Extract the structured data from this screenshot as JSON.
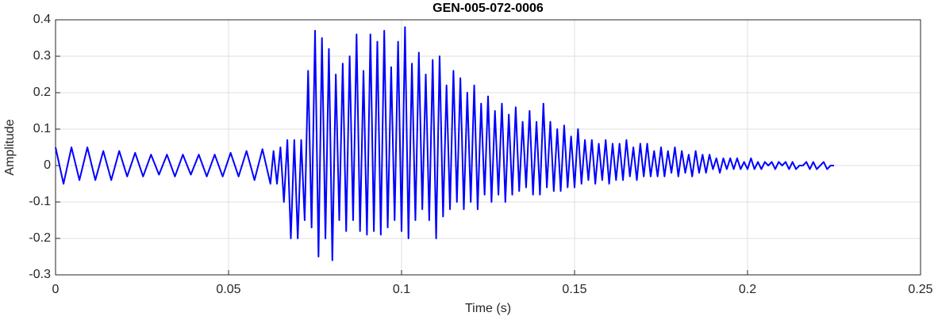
{
  "chart_data": {
    "type": "line",
    "title": "GEN-005-072-0006",
    "xlabel": "Time (s)",
    "ylabel": "Amplitude",
    "color": "#0000ff",
    "grid": true,
    "xlim": [
      0,
      0.25
    ],
    "xticks": [
      0,
      0.05,
      0.1,
      0.15,
      0.2,
      0.25
    ],
    "ylim": [
      -0.3,
      0.4
    ],
    "yticks": [
      -0.3,
      -0.2,
      -0.1,
      0,
      0.1,
      0.2,
      0.3,
      0.4
    ],
    "x": [
      0,
      0.0023,
      0.0046,
      0.0069,
      0.0092,
      0.0115,
      0.0138,
      0.0161,
      0.0184,
      0.0207,
      0.023,
      0.0253,
      0.0276,
      0.0299,
      0.0322,
      0.0345,
      0.0368,
      0.0391,
      0.0414,
      0.0437,
      0.046,
      0.0483,
      0.0506,
      0.0529,
      0.0552,
      0.0575,
      0.0598,
      0.0621,
      0.063,
      0.064,
      0.065,
      0.066,
      0.067,
      0.068,
      0.069,
      0.07,
      0.071,
      0.072,
      0.073,
      0.074,
      0.075,
      0.076,
      0.077,
      0.078,
      0.079,
      0.08,
      0.081,
      0.082,
      0.083,
      0.084,
      0.085,
      0.086,
      0.087,
      0.088,
      0.089,
      0.09,
      0.091,
      0.092,
      0.093,
      0.094,
      0.095,
      0.096,
      0.097,
      0.098,
      0.099,
      0.1,
      0.101,
      0.102,
      0.103,
      0.104,
      0.105,
      0.106,
      0.107,
      0.108,
      0.109,
      0.11,
      0.111,
      0.112,
      0.113,
      0.114,
      0.115,
      0.116,
      0.117,
      0.118,
      0.119,
      0.12,
      0.121,
      0.122,
      0.123,
      0.124,
      0.125,
      0.126,
      0.127,
      0.128,
      0.129,
      0.13,
      0.131,
      0.132,
      0.133,
      0.134,
      0.135,
      0.136,
      0.137,
      0.138,
      0.139,
      0.14,
      0.141,
      0.142,
      0.143,
      0.144,
      0.145,
      0.146,
      0.147,
      0.148,
      0.149,
      0.15,
      0.151,
      0.152,
      0.153,
      0.154,
      0.155,
      0.156,
      0.157,
      0.158,
      0.159,
      0.16,
      0.161,
      0.162,
      0.163,
      0.164,
      0.165,
      0.166,
      0.167,
      0.168,
      0.169,
      0.17,
      0.171,
      0.172,
      0.173,
      0.174,
      0.175,
      0.176,
      0.177,
      0.178,
      0.179,
      0.18,
      0.181,
      0.182,
      0.183,
      0.184,
      0.185,
      0.186,
      0.187,
      0.188,
      0.189,
      0.19,
      0.191,
      0.192,
      0.193,
      0.194,
      0.195,
      0.196,
      0.197,
      0.198,
      0.199,
      0.2,
      0.201,
      0.202,
      0.203,
      0.204,
      0.205,
      0.206,
      0.207,
      0.208,
      0.209,
      0.21,
      0.211,
      0.212,
      0.213,
      0.214,
      0.215,
      0.216,
      0.217,
      0.218,
      0.219,
      0.22,
      0.221,
      0.222,
      0.223,
      0.224,
      0.225
    ],
    "values": [
      0.05,
      -0.05,
      0.05,
      -0.04,
      0.05,
      -0.04,
      0.04,
      -0.04,
      0.04,
      -0.03,
      0.035,
      -0.03,
      0.03,
      -0.025,
      0.03,
      -0.03,
      0.03,
      -0.025,
      0.03,
      -0.03,
      0.03,
      -0.03,
      0.035,
      -0.03,
      0.04,
      -0.04,
      0.045,
      -0.05,
      0.04,
      -0.05,
      0.05,
      -0.1,
      0.07,
      -0.2,
      0.07,
      -0.2,
      0.07,
      -0.15,
      0.26,
      -0.17,
      0.37,
      -0.25,
      0.35,
      -0.2,
      0.32,
      -0.26,
      0.25,
      -0.15,
      0.28,
      -0.18,
      0.3,
      -0.15,
      0.36,
      -0.18,
      0.26,
      -0.19,
      0.36,
      -0.18,
      0.34,
      -0.19,
      0.37,
      -0.17,
      0.27,
      -0.15,
      0.34,
      -0.18,
      0.38,
      -0.2,
      0.28,
      -0.15,
      0.31,
      -0.12,
      0.25,
      -0.15,
      0.29,
      -0.2,
      0.3,
      -0.14,
      0.22,
      -0.12,
      0.26,
      -0.1,
      0.24,
      -0.12,
      0.2,
      -0.1,
      0.22,
      -0.12,
      0.17,
      -0.08,
      0.19,
      -0.1,
      0.15,
      -0.08,
      0.17,
      -0.1,
      0.14,
      -0.08,
      0.16,
      -0.07,
      0.12,
      -0.06,
      0.15,
      -0.08,
      0.12,
      -0.08,
      0.17,
      -0.06,
      0.12,
      -0.07,
      0.1,
      -0.07,
      0.11,
      -0.06,
      0.08,
      -0.06,
      0.1,
      -0.05,
      0.07,
      -0.04,
      0.07,
      -0.05,
      0.06,
      -0.04,
      0.07,
      -0.05,
      0.06,
      -0.04,
      0.06,
      -0.04,
      0.07,
      -0.03,
      0.05,
      -0.04,
      0.06,
      -0.03,
      0.06,
      -0.03,
      0.04,
      -0.03,
      0.05,
      -0.03,
      0.04,
      -0.02,
      0.05,
      -0.03,
      0.04,
      -0.02,
      0.03,
      -0.03,
      0.04,
      -0.02,
      0.03,
      -0.02,
      0.03,
      -0.01,
      0.02,
      -0.02,
      0.02,
      -0.01,
      0.02,
      -0.01,
      0.02,
      -0.01,
      0.01,
      -0.01,
      0.02,
      -0.01,
      0.01,
      -0.01,
      0.01,
      0,
      0.01,
      -0.01,
      0.01,
      0,
      0.01,
      -0.01,
      0.01,
      -0.01,
      0,
      0,
      0.01,
      -0.01,
      0.01,
      -0.01,
      0,
      0.01,
      -0.01,
      0,
      0
    ]
  }
}
